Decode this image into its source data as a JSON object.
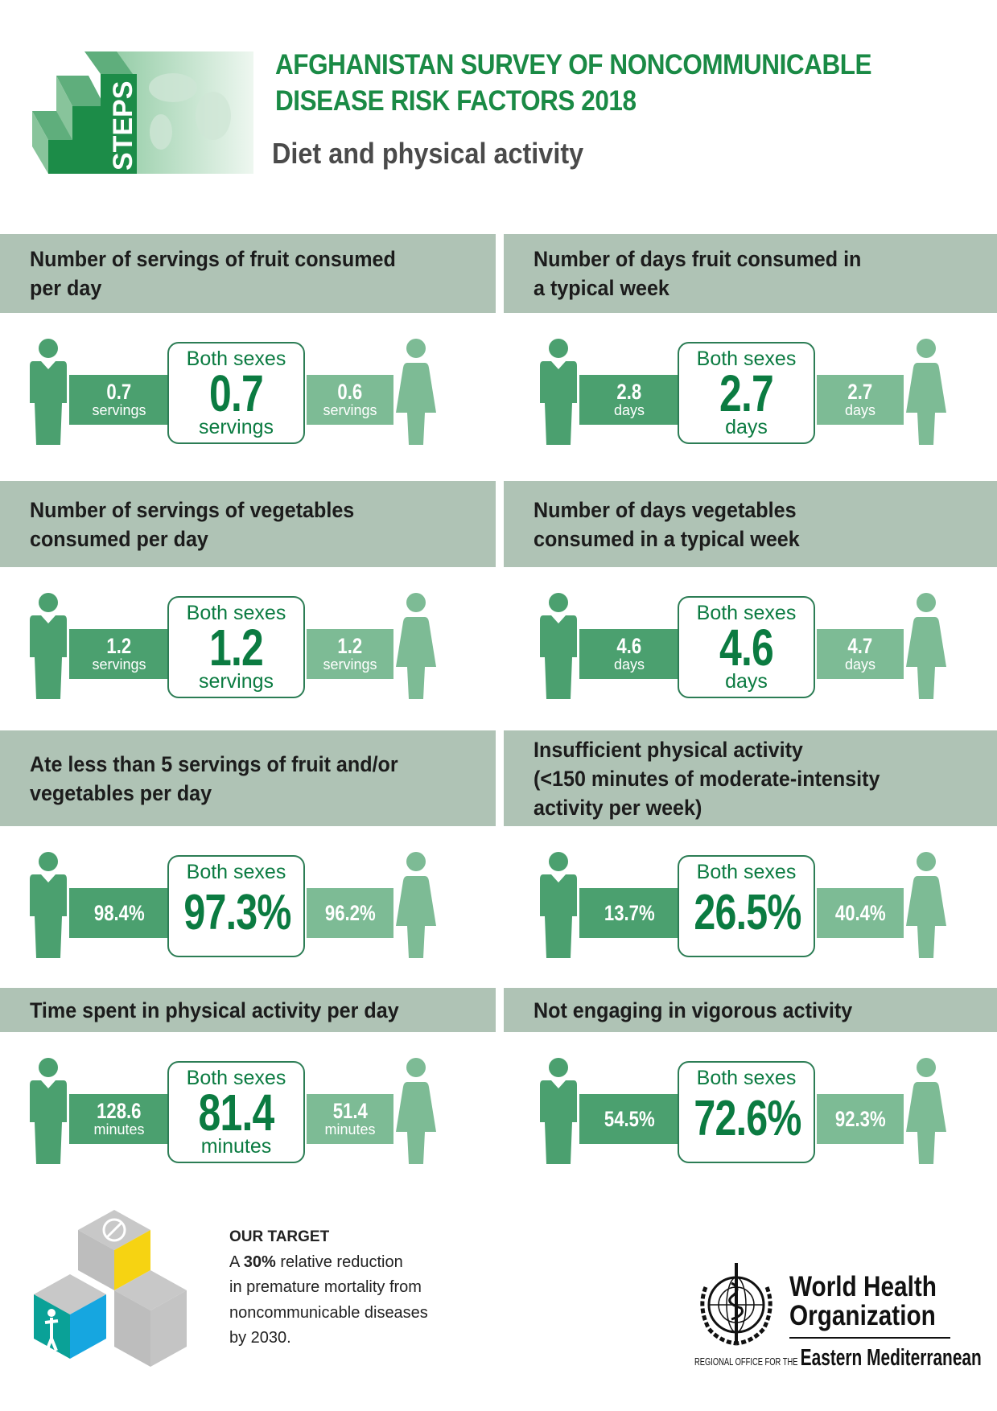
{
  "header": {
    "title_line1": "AFGHANISTAN SURVEY OF NONCOMMUNICABLE",
    "title_line2": "DISEASE RISK FACTORS 2018",
    "subtitle": "Diet and physical activity",
    "logo_text": "STEPS"
  },
  "both_label": "Both sexes",
  "panels": [
    {
      "title": "Number of servings of fruit consumed\nper day",
      "male": "0.7",
      "both": "0.7",
      "female": "0.6",
      "unit": "servings"
    },
    {
      "title": "Number of days fruit consumed in\na typical week",
      "male": "2.8",
      "both": "2.7",
      "female": "2.7",
      "unit": "days"
    },
    {
      "title": "Number of servings of vegetables\nconsumed per day",
      "male": "1.2",
      "both": "1.2",
      "female": "1.2",
      "unit": "servings"
    },
    {
      "title": "Number of days vegetables\nconsumed in a typical week",
      "male": "4.6",
      "both": "4.6",
      "female": "4.7",
      "unit": "days"
    },
    {
      "title": "Ate less than 5 servings of fruit and/or\nvegetables per day",
      "male": "98.4%",
      "both": "97.3%",
      "female": "96.2%",
      "unit": ""
    },
    {
      "title": "Insufficient physical activity\n(<150 minutes of  moderate-intensity\nactivity per week)",
      "male": "13.7%",
      "both": "26.5%",
      "female": "40.4%",
      "unit": ""
    },
    {
      "title": "Time spent in physical activity per day",
      "male": "128.6",
      "both": "81.4",
      "female": "51.4",
      "unit": "minutes"
    },
    {
      "title": "Not engaging in vigorous activity",
      "male": "54.5%",
      "both": "72.6%",
      "female": "92.3%",
      "unit": ""
    }
  ],
  "target": {
    "heading": "OUR TARGET",
    "line1_pre": "A ",
    "line1_bold": "30%",
    "line1_post": " relative reduction",
    "line2": "in premature mortality from",
    "line3": "noncommunicable diseases",
    "line4": "by 2030."
  },
  "who": {
    "name_line1": "World Health",
    "name_line2": "Organization",
    "regional_prefix": "REGIONAL OFFICE FOR THE",
    "region": "Eastern Mediterranean"
  },
  "colors": {
    "male": "#4ba06f",
    "female": "#7dbb95",
    "band": "#afc3b5",
    "accent": "#0b7b41"
  }
}
